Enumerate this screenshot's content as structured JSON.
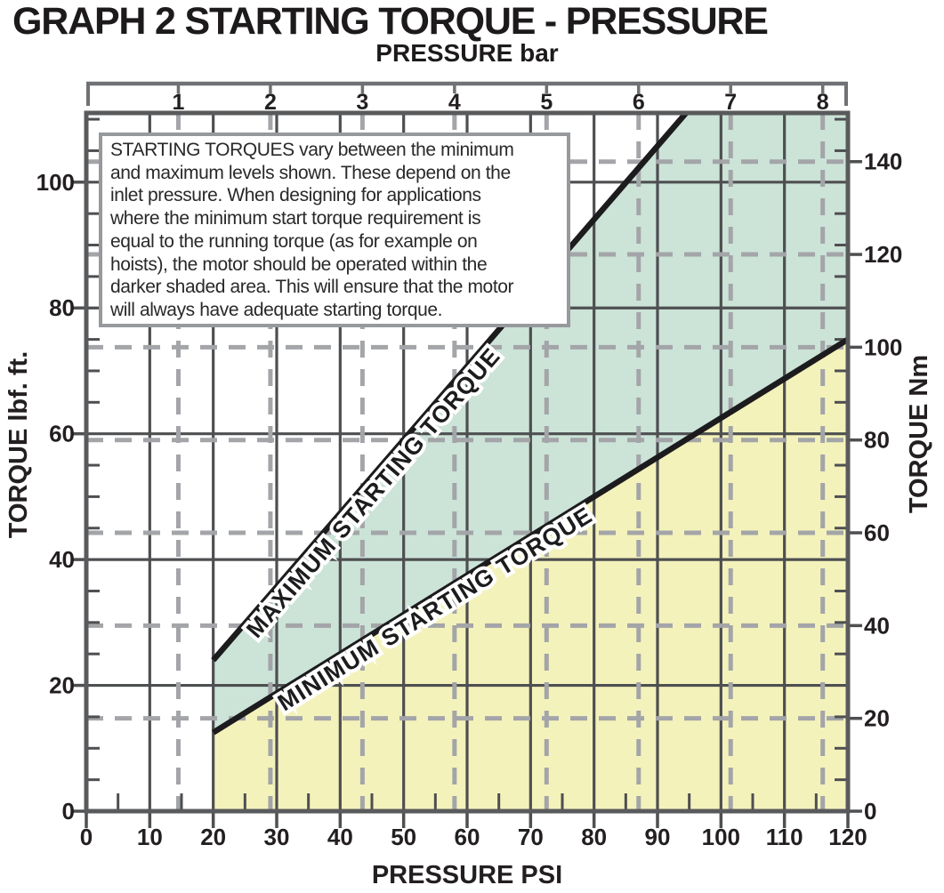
{
  "page_title": "GRAPH 2 STARTING TORQUE - PRESSURE",
  "note_box": {
    "text": "STARTING TORQUES vary between the minimum\nand maximum levels shown. These depend on the\ninlet pressure. When designing for applications\nwhere the minimum start torque requirement is\nequal to the running torque (as for example on\nhoists), the motor should be operated within the\ndarker shaded area. This will ensure that the motor\nwill always have adequate starting torque."
  },
  "chart_data": {
    "type": "area",
    "title": "GRAPH 2 STARTING TORQUE - PRESSURE",
    "grid": "solid psi/lbf-ft grid plus dashed bar/Nm grid",
    "axes": {
      "bottom": {
        "label": "PRESSURE PSI",
        "ticks": [
          0,
          10,
          20,
          30,
          40,
          50,
          60,
          70,
          80,
          90,
          100,
          110,
          120
        ],
        "minor_step": 5,
        "range": [
          0,
          120
        ]
      },
      "top": {
        "label": "PRESSURE bar",
        "ticks": [
          1,
          2,
          3,
          4,
          5,
          6,
          7,
          8
        ],
        "psi_per_bar": 14.504
      },
      "left": {
        "label": "TORQUE lbf. ft.",
        "ticks": [
          0,
          20,
          40,
          60,
          80,
          100
        ],
        "minor_step": 5,
        "range": [
          0,
          111
        ]
      },
      "right": {
        "label": "TORQUE Nm",
        "ticks": [
          0,
          20,
          40,
          60,
          80,
          100,
          120,
          140
        ],
        "nm_per_lbf_ft": 1.3558
      }
    },
    "series": [
      {
        "name": "MAXIMUM STARTING TORQUE",
        "points": [
          {
            "psi": 20,
            "lbf_ft": 24
          },
          {
            "psi": 94.5,
            "lbf_ft": 111
          }
        ],
        "color": "#1c1b1d"
      },
      {
        "name": "MINIMUM STARTING TORQUE",
        "points": [
          {
            "psi": 20,
            "lbf_ft": 12.5
          },
          {
            "psi": 120,
            "lbf_ft": 75
          }
        ],
        "color": "#1c1b1d"
      }
    ],
    "regions": [
      {
        "name": "recommended-operating-region",
        "description": "darker shaded area between minimum and maximum starting torque lines",
        "color": "#cce3d8"
      },
      {
        "name": "below-minimum-region",
        "description": "area below minimum starting torque line from 20 to 120 PSI",
        "color": "#f4f2bb"
      }
    ],
    "colors": {
      "solid_grid": "#4e4f51",
      "dashed_grid": "#a3a5a8",
      "plot_border": "#595a5c",
      "ruler": "#6f7174",
      "line": "#1c1b1d",
      "text": "#231f20",
      "note_border": "#97999c"
    }
  }
}
